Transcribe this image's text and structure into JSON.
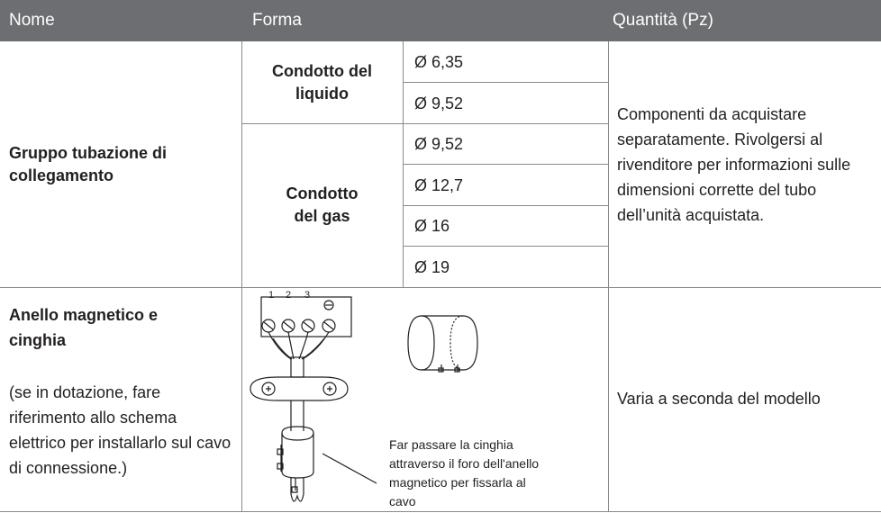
{
  "table": {
    "header": [
      "Nome",
      "Forma",
      "Quantità (Pz)"
    ],
    "rows": [
      {
        "name": "Gruppo tubazione di collegamento",
        "groups": [
          {
            "label": "Condotto del liquido",
            "sizes": [
              "Ø 6,35",
              "Ø 9,52"
            ]
          },
          {
            "label": "Condotto del gas",
            "sizes": [
              "Ø 9,52",
              "Ø 12,7",
              "Ø 16",
              "Ø 19"
            ]
          }
        ],
        "quantity": "Componenti da acquistare separatamente. Rivolgersi al rivenditore per informazioni sulle dimensioni corrette del tubo dell’unità acquistata."
      },
      {
        "name": "Anello magnetico e cinghia",
        "note": "(se in dotazione, fare riferimento allo schema elettrico per installarlo sul cavo di connessione.)",
        "figure": {
          "terminals": [
            "1",
            "2",
            "3"
          ],
          "caption": "Far passare la cinghia attraverso il foro dell'anello magnetico per fissarla al cavo"
        },
        "quantity": "Varia a seconda del modello"
      }
    ]
  }
}
